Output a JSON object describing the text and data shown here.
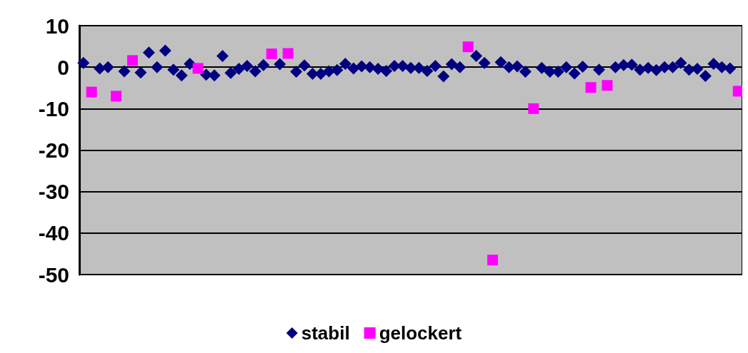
{
  "chart_data": {
    "type": "scatter",
    "categories": [
      null,
      null,
      null,
      null,
      null,
      null,
      null,
      null,
      null,
      null,
      null,
      null,
      null,
      null,
      null,
      null,
      null,
      null,
      null,
      null,
      null,
      null,
      null,
      null,
      null,
      null,
      null,
      null,
      null,
      null,
      null,
      null,
      null,
      null,
      null,
      null,
      null,
      null,
      null,
      null,
      null,
      null,
      null,
      null,
      null,
      null,
      null,
      null,
      null,
      null,
      null,
      null,
      null,
      null,
      null,
      null,
      null,
      null,
      null,
      null,
      null,
      null,
      null,
      null,
      null,
      null,
      null,
      null,
      null,
      null,
      null,
      null,
      null,
      null,
      null,
      null,
      null,
      null,
      null,
      null,
      null
    ],
    "series": [
      {
        "name": "stabil",
        "color": "#000080",
        "marker": "diamond",
        "values": [
          1,
          null,
          -0.3,
          0,
          null,
          -1,
          null,
          -1.3,
          3.5,
          0,
          4,
          -0.6,
          -2,
          0.8,
          null,
          -1.8,
          -2,
          2.7,
          -1.4,
          -0.4,
          0.3,
          -1,
          0.5,
          null,
          0.7,
          null,
          -1.1,
          0.4,
          -1.6,
          -1.6,
          -1,
          -0.7,
          0.8,
          -0.3,
          0.2,
          0,
          -0.4,
          -0.9,
          0.3,
          0.3,
          -0.2,
          -0.2,
          -0.9,
          0.3,
          -2.2,
          0.7,
          0,
          null,
          2.7,
          1,
          null,
          1.2,
          0,
          0.2,
          -1.1,
          null,
          -0.2,
          -1.1,
          -1.1,
          0,
          -1.5,
          0.1,
          null,
          -0.6,
          null,
          0,
          0.5,
          0.6,
          -0.6,
          -0.2,
          -0.7,
          0,
          0,
          1,
          -0.6,
          -0.4,
          -2.1,
          0.8,
          0,
          -0.3,
          null
        ]
      },
      {
        "name": "gelockert",
        "color": "#ff00ff",
        "marker": "square",
        "values": [
          null,
          -6,
          null,
          null,
          -7,
          null,
          1.6,
          null,
          null,
          null,
          null,
          null,
          null,
          null,
          -0.3,
          null,
          null,
          null,
          null,
          null,
          null,
          null,
          null,
          3.2,
          null,
          3.3,
          null,
          null,
          null,
          null,
          null,
          null,
          null,
          null,
          null,
          null,
          null,
          null,
          null,
          null,
          null,
          null,
          null,
          null,
          null,
          null,
          null,
          4.9,
          null,
          null,
          -46.5,
          null,
          null,
          null,
          null,
          -10,
          null,
          null,
          null,
          null,
          null,
          null,
          -4.9,
          null,
          -4.4,
          null,
          null,
          null,
          null,
          null,
          null,
          null,
          null,
          null,
          null,
          null,
          null,
          null,
          null,
          null,
          -5.8
        ]
      }
    ],
    "ylim": [
      -50,
      10
    ],
    "yticks": [
      -50,
      -40,
      -30,
      -20,
      -10,
      0,
      10
    ],
    "grid": "y",
    "legend": "bottom"
  }
}
